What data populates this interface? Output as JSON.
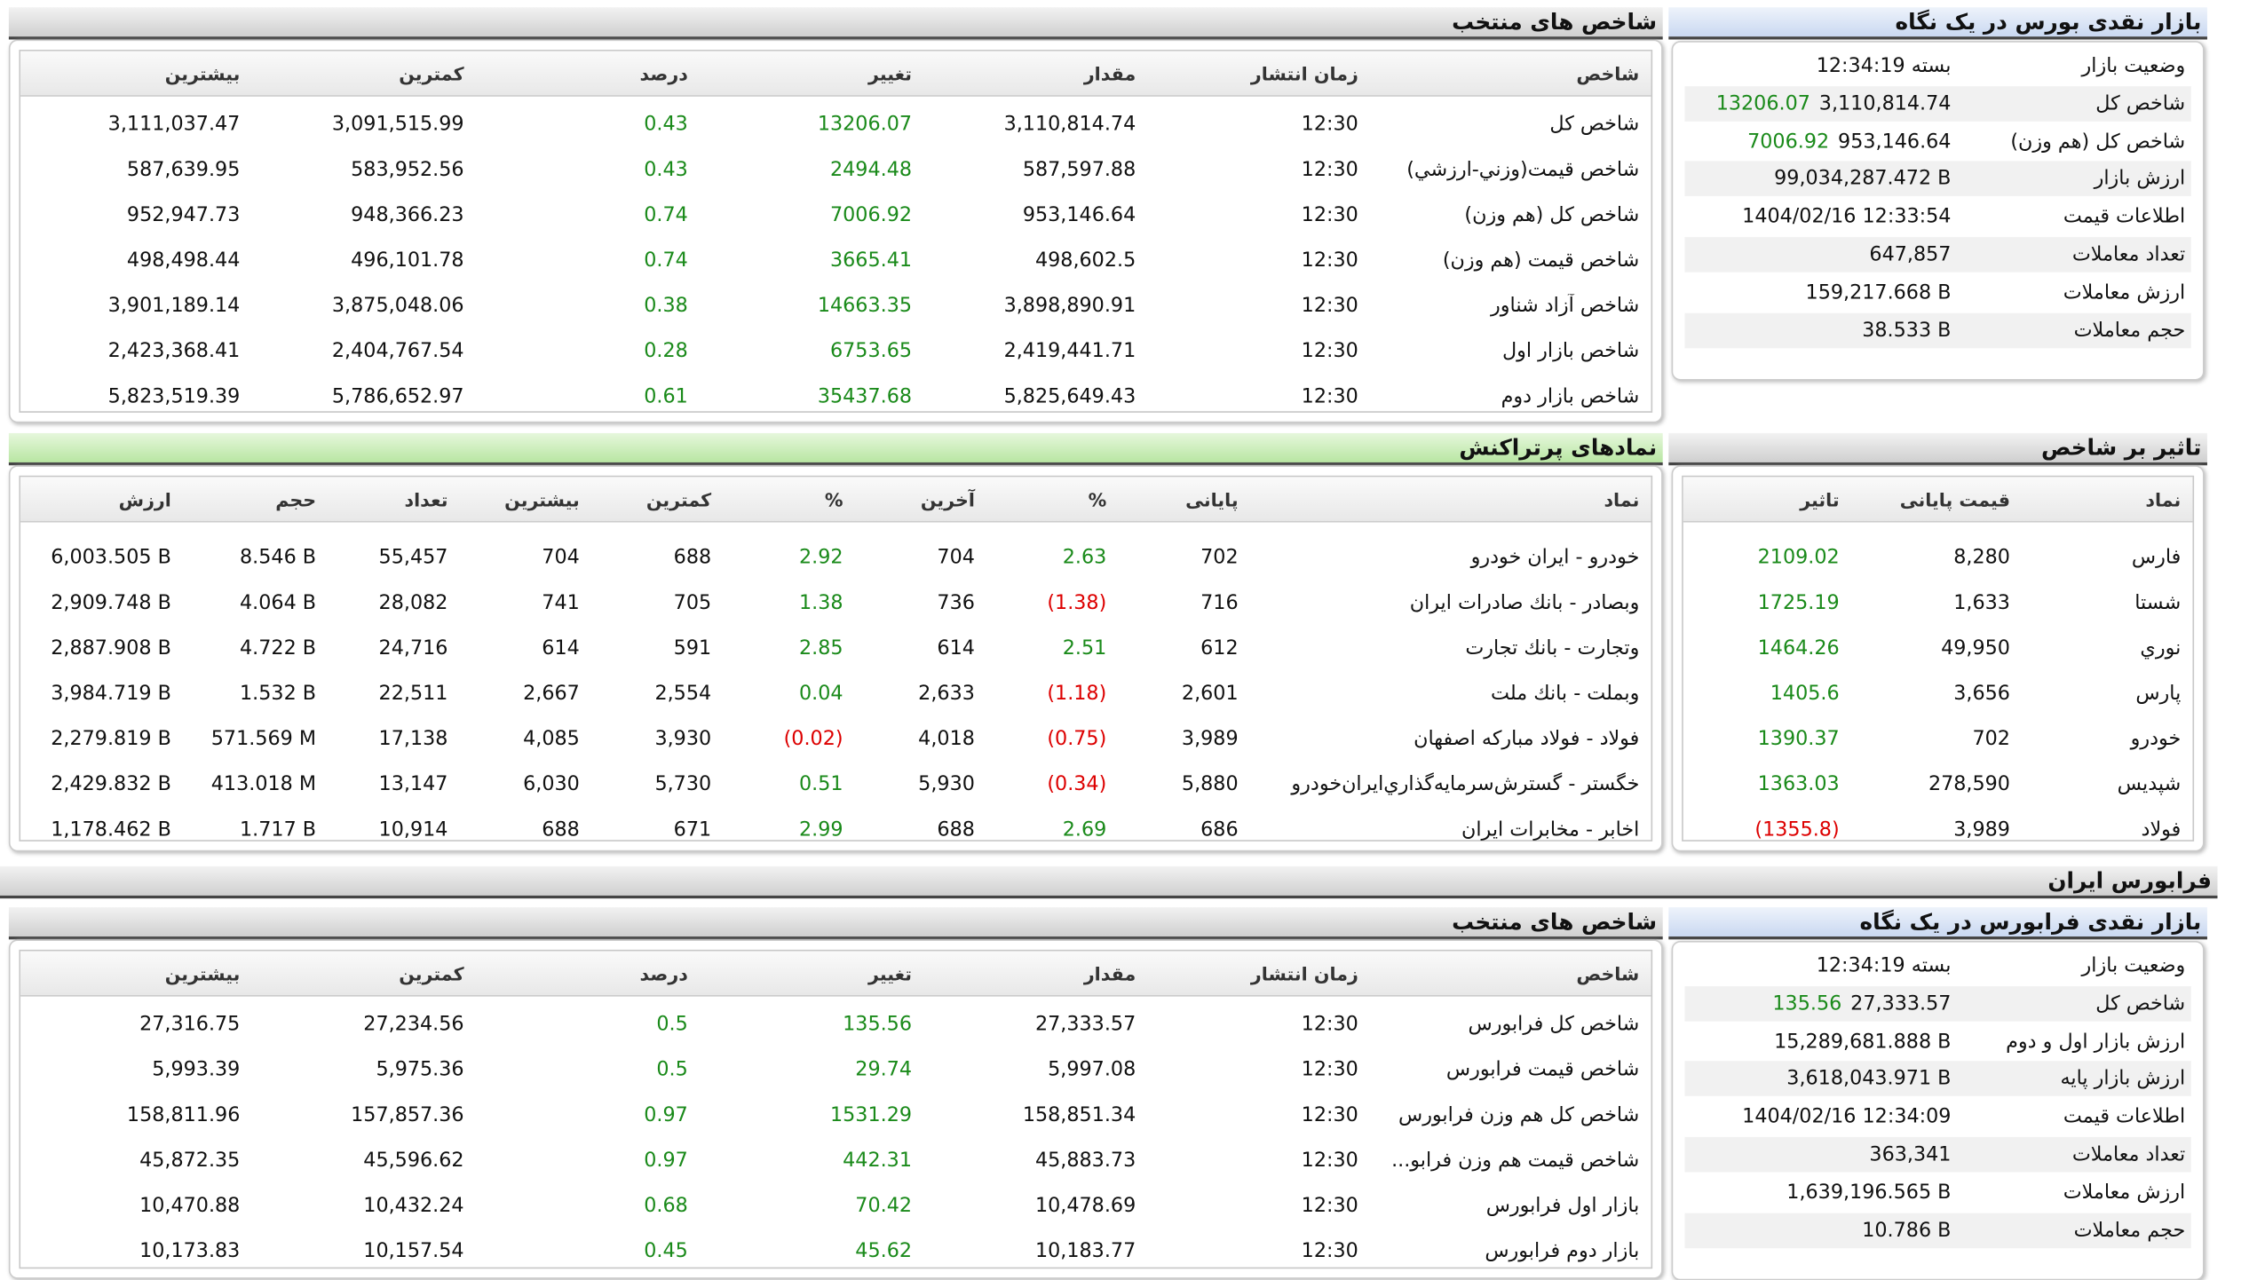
{
  "bourse": {
    "overview": {
      "title": "بازار نقدی بورس در یک نگاه",
      "rows": [
        {
          "label": "وضعیت بازار",
          "value": "بسته 12:34:19"
        },
        {
          "label": "شاخص کل",
          "value": "3,110,814.74",
          "change": "13206.07"
        },
        {
          "label": "شاخص کل (هم وزن)",
          "value": "953,146.64",
          "change": "7006.92"
        },
        {
          "label": "ارزش بازار",
          "value": "99,034,287.472 B"
        },
        {
          "label": "اطلاعات قیمت",
          "value": "1404/02/16 12:33:54"
        },
        {
          "label": "تعداد معاملات",
          "value": "647,857"
        },
        {
          "label": "ارزش معاملات",
          "value": "159,217.668 B"
        },
        {
          "label": "حجم معاملات",
          "value": "38.533 B"
        }
      ]
    },
    "indices": {
      "title": "شاخص های منتخب",
      "columns": [
        "شاخص",
        "زمان انتشار",
        "مقدار",
        "تغییر",
        "درصد",
        "کمترین",
        "بیشترین"
      ],
      "rows": [
        [
          "شاخص کل",
          "12:30",
          "3,110,814.74",
          "13206.07",
          "0.43",
          "3,091,515.99",
          "3,111,037.47"
        ],
        [
          "شاخص قیمت(وزني-ارزشي)",
          "12:30",
          "587,597.88",
          "2494.48",
          "0.43",
          "583,952.56",
          "587,639.95"
        ],
        [
          "شاخص کل (هم وزن)",
          "12:30",
          "953,146.64",
          "7006.92",
          "0.74",
          "948,366.23",
          "952,947.73"
        ],
        [
          "شاخص قیمت (هم وزن)",
          "12:30",
          "498,602.5",
          "3665.41",
          "0.74",
          "496,101.78",
          "498,498.44"
        ],
        [
          "شاخص آزاد شناور",
          "12:30",
          "3,898,890.91",
          "14663.35",
          "0.38",
          "3,875,048.06",
          "3,901,189.14"
        ],
        [
          "شاخص بازار اول",
          "12:30",
          "2,419,441.71",
          "6753.65",
          "0.28",
          "2,404,767.54",
          "2,423,368.41"
        ],
        [
          "شاخص بازار دوم",
          "12:30",
          "5,825,649.43",
          "35437.68",
          "0.61",
          "5,786,652.97",
          "5,823,519.39"
        ]
      ]
    },
    "impact": {
      "title": "تاثیر بر شاخص",
      "columns": [
        "نماد",
        "قیمت پایانی",
        "تاثیر"
      ],
      "rows": [
        [
          "فارس",
          "8,280",
          "2109.02"
        ],
        [
          "شستا",
          "1,633",
          "1725.19"
        ],
        [
          "نوري",
          "49,950",
          "1464.26"
        ],
        [
          "پارس",
          "3,656",
          "1405.6"
        ],
        [
          "خودرو",
          "702",
          "1390.37"
        ],
        [
          "شپدیس",
          "278,590",
          "1363.03"
        ],
        [
          "فولاد",
          "3,989",
          "(1355.8)"
        ]
      ]
    },
    "active": {
      "title": "نمادهای پرتراکنش",
      "columns": [
        "نماد",
        "پایانی",
        "%",
        "آخرین",
        "%",
        "کمترین",
        "بیشترین",
        "تعداد",
        "حجم",
        "ارزش"
      ],
      "rows": [
        [
          "خودرو - ایران خودرو",
          "702",
          "2.63",
          "704",
          "2.92",
          "688",
          "704",
          "55,457",
          "8.546 B",
          "6,003.505 B"
        ],
        [
          "وبصادر - بانك صادرات ايران",
          "716",
          "(1.38)",
          "736",
          "1.38",
          "705",
          "741",
          "28,082",
          "4.064 B",
          "2,909.748 B"
        ],
        [
          "وتجارت - بانك تجارت",
          "612",
          "2.51",
          "614",
          "2.85",
          "591",
          "614",
          "24,716",
          "4.722 B",
          "2,887.908 B"
        ],
        [
          "وبملت - بانك ملت",
          "2,601",
          "(1.18)",
          "2,633",
          "0.04",
          "2,554",
          "2,667",
          "22,511",
          "1.532 B",
          "3,984.719 B"
        ],
        [
          "فولاد - فولاد مباركه اصفهان",
          "3,989",
          "(0.75)",
          "4,018",
          "(0.02)",
          "3,930",
          "4,085",
          "17,138",
          "571.569 M",
          "2,279.819 B"
        ],
        [
          "خگستر - گسترش‌سرمايه‌گذاري‌ايران‌خودرو",
          "5,880",
          "(0.34)",
          "5,930",
          "0.51",
          "5,730",
          "6,030",
          "13,147",
          "413.018 M",
          "2,429.832 B"
        ],
        [
          "اخابر - مخابرات ايران",
          "686",
          "2.69",
          "688",
          "2.99",
          "671",
          "688",
          "10,914",
          "1.717 B",
          "1,178.462 B"
        ]
      ]
    }
  },
  "farabourse": {
    "title": "فرابورس ایران",
    "overview": {
      "title": "بازار نقدی فرابورس در یک نگاه",
      "rows": [
        {
          "label": "وضعیت بازار",
          "value": "بسته 12:34:19"
        },
        {
          "label": "شاخص کل",
          "value": "27,333.57",
          "change": "135.56"
        },
        {
          "label": "ارزش بازار اول و دوم",
          "value": "15,289,681.888 B"
        },
        {
          "label": "ارزش بازار پایه",
          "value": "3,618,043.971 B"
        },
        {
          "label": "اطلاعات قیمت",
          "value": "1404/02/16 12:34:09"
        },
        {
          "label": "تعداد معاملات",
          "value": "363,341"
        },
        {
          "label": "ارزش معاملات",
          "value": "1,639,196.565 B"
        },
        {
          "label": "حجم معاملات",
          "value": "10.786 B"
        }
      ]
    },
    "indices": {
      "title": "شاخص های منتخب",
      "columns": [
        "شاخص",
        "زمان انتشار",
        "مقدار",
        "تغییر",
        "درصد",
        "کمترین",
        "بیشترین"
      ],
      "rows": [
        [
          "شاخص کل فرابورس",
          "12:30",
          "27,333.57",
          "135.56",
          "0.5",
          "27,234.56",
          "27,316.75"
        ],
        [
          "شاخص قیمت فرابورس",
          "12:30",
          "5,997.08",
          "29.74",
          "0.5",
          "5,975.36",
          "5,993.39"
        ],
        [
          "شاخص کل هم وزن فرابورس",
          "12:30",
          "158,851.34",
          "1531.29",
          "0.97",
          "157,857.36",
          "158,811.96"
        ],
        [
          "شاخص قیمت هم وزن فرابو...",
          "12:30",
          "45,883.73",
          "442.31",
          "0.97",
          "45,596.62",
          "45,872.35"
        ],
        [
          "بازار اول فرابورس",
          "12:30",
          "10,478.69",
          "70.42",
          "0.68",
          "10,432.24",
          "10,470.88"
        ],
        [
          "بازار دوم فرابورس",
          "12:30",
          "10,183.77",
          "45.62",
          "0.45",
          "10,157.54",
          "10,173.83"
        ]
      ]
    }
  }
}
